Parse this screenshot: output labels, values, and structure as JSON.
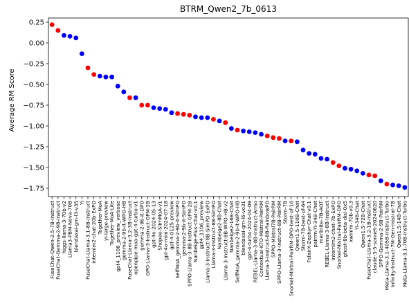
{
  "chart_data": {
    "type": "scatter",
    "title": "BTRM_Qwen2_7b_0613",
    "xlabel": "",
    "ylabel": "Average RM Score",
    "ylim": [
      -1.85,
      0.3
    ],
    "yticks": [
      0.25,
      0.0,
      -0.25,
      -0.5,
      -0.75,
      -1.0,
      -1.25,
      -1.5,
      -1.75
    ],
    "ytick_labels": [
      "0.25",
      "0.00",
      "−0.25",
      "−0.50",
      "−0.75",
      "−1.00",
      "−1.25",
      "−1.50",
      "−1.75"
    ],
    "grid": false,
    "colors": {
      "red": "#ff0000",
      "blue": "#0000ff"
    },
    "categories": [
      "FuseChat-Qwen-2.5-7B-Instruct",
      "FuseChat-Gemma-2-9B-Instruct",
      "higgs-llama-3-70b-v2",
      "Llama3-PBM-Nova-70B",
      "blendaxai-gm-l3-v35",
      "Yi",
      "FuseChat-Llama-3.1-8B-Instruct",
      "internlm2-chat-20b-ExPO",
      "Together-MoA",
      "yi-large-preview",
      "Together-MoA-Lite",
      "gpt4_1106_preview_verbose",
      "gemma-2-9b-it-WPO-HB",
      "FuseChat-Llama-3.2-3B-Instruct",
      "openpipe-moa-gpt-4-turbo-v1",
      "gemma-2-9b-it-DPO",
      "GPO-Llama-3-Instruct-GPM-2B",
      "gpt-4o-2024-05-13",
      "Shopee-SlimMoA-v1",
      "gpt-4o-mini-2024-07-18",
      "gpt-4-0125-preview",
      "SelfMoA_gemma-2-9b-it-SimPO",
      "gemma-2-9b-it-SimPO",
      "SPPO-Llama-3-8B-Instruct-GPM-2B",
      "Nanbeige-Plus-Chat-v0.1",
      "gpt4_1106_preview",
      "Llama-3-Instruct-8B-SimPO-ExPO",
      "Llama-3-Instruct-8B-SimPO",
      "Nanbeige2-8B-Chat",
      "Llama-3-Instruct-8B-WPO-HB-v2",
      "Nanbeige2-16B-Chat",
      "SelfMoA_gemma-2-9b-it-WPO-HB",
      "blendaxai-gm-l6-vo31",
      "gpt-4-turbo-2024-04-09",
      "REBEL-Llama-3-8B-Instruct-Armo",
      "Contextual-KTO-Mistral-PairRM",
      "Llama-3-Instruct-8B-RainbowPO",
      "SPPO-Mistral7B-PairRM",
      "SPPO-Llama-3-Instruct-8B-PairRM",
      "Storm-7B",
      "Snorkel-Mistral-PairRM-DPO-best-of-16",
      "Qwen1.5-110B-Chat",
      "Storm-7B-best-of-64",
      "FsfairX-Zephyr-Chat-v0.1",
      "pairrm-Yi-34B-Chat",
      "merlinite-7B-AOT",
      "REBEL-Llama-3-8B-Instruct",
      "internlm2-chat-7b-ExPO",
      "Snorkel-Mistral-PairRM-DPO",
      "ghost-8b-beta-disl-0x5",
      "xwinlm-70b-v0.3",
      "Yi-34B-Chat",
      "Qwen1.5-72B-Chat",
      "FuseChat-Llama-3.2-1B-Instruct",
      "claude-3-5-sonnet-20240620",
      "SPPO-Gemma-2-9B-PairRM",
      "Meta-Llama-3.1-405B-Instruct-Turbo",
      "Infinity-Instruct-7M-Gen-mistral-7B",
      "Qwen1.5-14B-Chat",
      "Meta-Llama-3.1-70B-Instruct-Turbo"
    ],
    "values": [
      0.22,
      0.15,
      0.09,
      0.08,
      0.06,
      -0.13,
      -0.3,
      -0.38,
      -0.4,
      -0.41,
      -0.41,
      -0.52,
      -0.59,
      -0.66,
      -0.66,
      -0.75,
      -0.75,
      -0.78,
      -0.79,
      -0.8,
      -0.84,
      -0.85,
      -0.86,
      -0.87,
      -0.89,
      -0.9,
      -0.9,
      -0.92,
      -0.94,
      -0.96,
      -1.03,
      -1.05,
      -1.06,
      -1.07,
      -1.08,
      -1.1,
      -1.12,
      -1.14,
      -1.15,
      -1.18,
      -1.18,
      -1.19,
      -1.29,
      -1.33,
      -1.34,
      -1.39,
      -1.4,
      -1.44,
      -1.48,
      -1.51,
      -1.52,
      -1.54,
      -1.57,
      -1.59,
      -1.6,
      -1.66,
      -1.7,
      -1.71,
      -1.72,
      -1.74
    ],
    "point_colors": [
      "red",
      "red",
      "blue",
      "blue",
      "blue",
      "blue",
      "red",
      "red",
      "blue",
      "blue",
      "blue",
      "blue",
      "blue",
      "red",
      "blue",
      "red",
      "red",
      "blue",
      "blue",
      "blue",
      "blue",
      "red",
      "red",
      "red",
      "blue",
      "blue",
      "blue",
      "red",
      "blue",
      "red",
      "blue",
      "red",
      "blue",
      "blue",
      "blue",
      "blue",
      "red",
      "red",
      "red",
      "blue",
      "red",
      "blue",
      "blue",
      "blue",
      "blue",
      "blue",
      "blue",
      "red",
      "red",
      "blue",
      "blue",
      "blue",
      "blue",
      "red",
      "red",
      "blue",
      "red",
      "blue",
      "blue",
      "blue"
    ]
  }
}
